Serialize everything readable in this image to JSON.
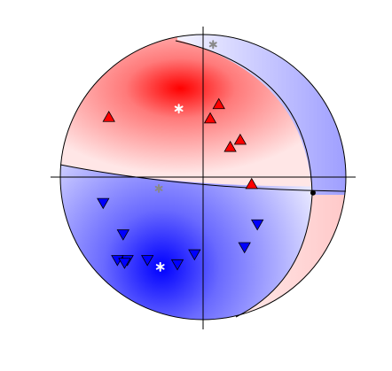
{
  "chart_data": {
    "type": "scatter",
    "title": "",
    "description_marks": {
      "compressional_symbol": "triangle-up",
      "dilatational_symbol": "triangle-down",
      "axis_symbol": "star",
      "pole_symbol": "star"
    },
    "compressional_points": [
      [
        -0.66,
        0.42
      ],
      [
        0.11,
        0.51
      ],
      [
        0.05,
        0.41
      ],
      [
        0.26,
        0.26
      ],
      [
        0.19,
        0.21
      ],
      [
        0.34,
        -0.05
      ]
    ],
    "dilatational_points": [
      [
        -0.7,
        -0.18
      ],
      [
        -0.56,
        -0.4
      ],
      [
        -0.53,
        -0.58
      ],
      [
        -0.6,
        -0.58
      ],
      [
        -0.55,
        -0.6
      ],
      [
        -0.39,
        -0.58
      ],
      [
        -0.18,
        -0.61
      ],
      [
        -0.06,
        -0.54
      ],
      [
        0.38,
        -0.33
      ],
      [
        0.29,
        -0.49
      ]
    ],
    "p_axis": [
      -0.17,
      0.48
    ],
    "t_axis": [
      -0.3,
      -0.63
    ],
    "null_axis": [
      0.77,
      -0.11
    ],
    "pole_points": [
      [
        0.07,
        0.93
      ],
      [
        -0.31,
        -0.08
      ]
    ],
    "colors": {
      "compressional": "#ff0000",
      "dilatational": "#0000ff",
      "axis_marks": "#ffffff",
      "pole_marks": "#888888",
      "outline": "#000000"
    }
  }
}
